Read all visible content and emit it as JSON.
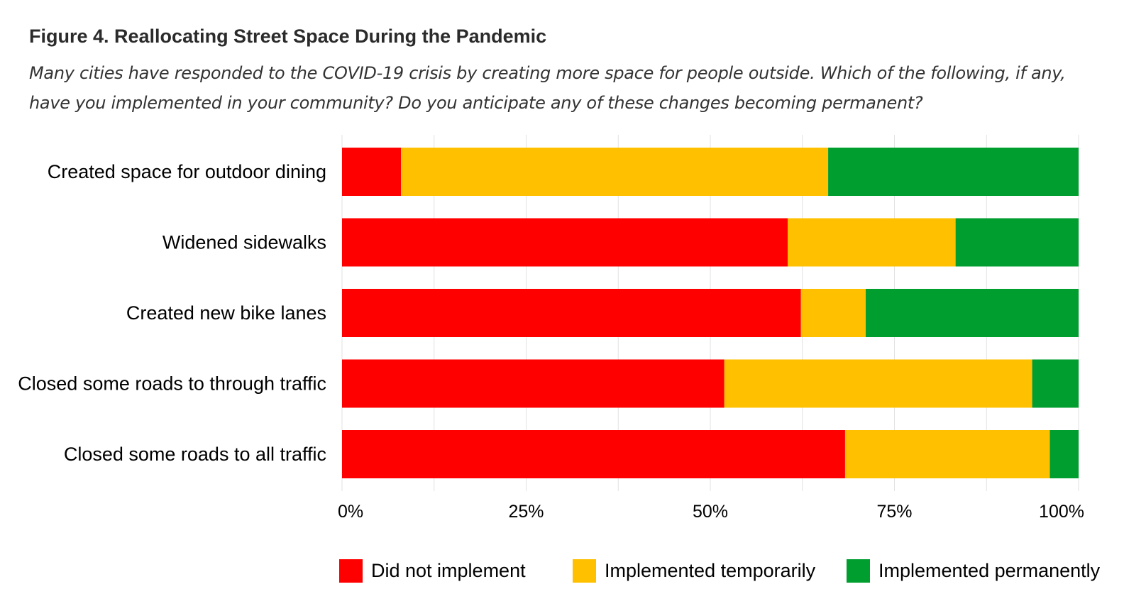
{
  "header": {
    "title": "Figure 4. Reallocating Street Space During the Pandemic",
    "subtitle": "Many cities have responded to the COVID-19 crisis by creating more space for people outside. Which of the following, if any, have you implemented in your community? Do you anticipate any of these changes becoming permanent?"
  },
  "chart_data": {
    "type": "bar",
    "orientation": "horizontal",
    "stacked": true,
    "categories": [
      "Created space for outdoor dining",
      "Widened sidewalks",
      "Created new bike lanes",
      "Closed some roads to through traffic",
      "Closed some roads to all traffic"
    ],
    "series": [
      {
        "name": "Did not implement",
        "color": "#ff0000",
        "values": [
          8,
          60.5,
          62.3,
          51.9,
          68.3
        ]
      },
      {
        "name": "Implemented temporarily",
        "color": "#ffc000",
        "values": [
          58,
          22.8,
          8.8,
          41.8,
          27.8
        ]
      },
      {
        "name": "Implemented permanently",
        "color": "#009e2f",
        "values": [
          34,
          16.7,
          28.9,
          6.3,
          3.9
        ]
      }
    ],
    "xlim": [
      0,
      100
    ],
    "xticks": [
      0,
      25,
      50,
      75,
      100
    ],
    "xtick_labels": [
      "0%",
      "25%",
      "50%",
      "75%",
      "100%"
    ],
    "grid": true,
    "legend_position": "bottom"
  }
}
